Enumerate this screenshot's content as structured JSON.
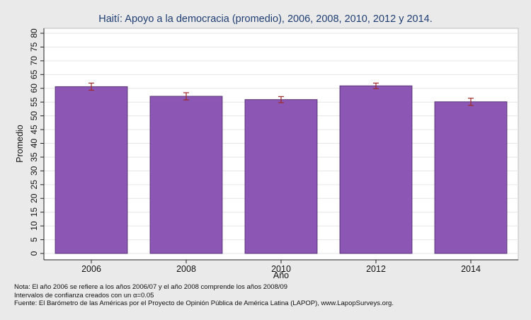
{
  "chart_data": {
    "type": "bar",
    "title": "Haití: Apoyo a la democracia (promedio), 2006, 2008, 2010, 2012 y 2014.",
    "xlabel": "Año",
    "ylabel": "Promedio",
    "categories": [
      "2006",
      "2008",
      "2010",
      "2012",
      "2014"
    ],
    "values": [
      60.6,
      57.1,
      55.9,
      60.9,
      55.1
    ],
    "ci_low": [
      59.3,
      55.8,
      54.8,
      59.9,
      53.8
    ],
    "ci_high": [
      61.9,
      58.4,
      57.0,
      61.9,
      56.4
    ],
    "ylim": [
      0,
      80
    ],
    "yticks": [
      0,
      5,
      10,
      15,
      20,
      25,
      30,
      35,
      40,
      45,
      50,
      55,
      60,
      65,
      70,
      75,
      80
    ],
    "grid": true,
    "colors": {
      "bar": "#8c56b4",
      "bar_edge": "#5a3578",
      "error_bar": "#9e2a2a",
      "plot_bg": "#ffffff",
      "page_bg": "#eaeaea",
      "title": "#1f3e73",
      "grid": "#e6e6e6"
    }
  },
  "notes": {
    "line1": "Nota: El año 2006 se refiere a los años 2006/07 y el año 2008 comprende los años 2008/09",
    "line2": "Intervalos de confianza creados con un α=0.05",
    "line3": "Fuente: El Barómetro de las Américas por el Proyecto de Opinión Pública de América Latina (LAPOP), www.LapopSurveys.org."
  }
}
